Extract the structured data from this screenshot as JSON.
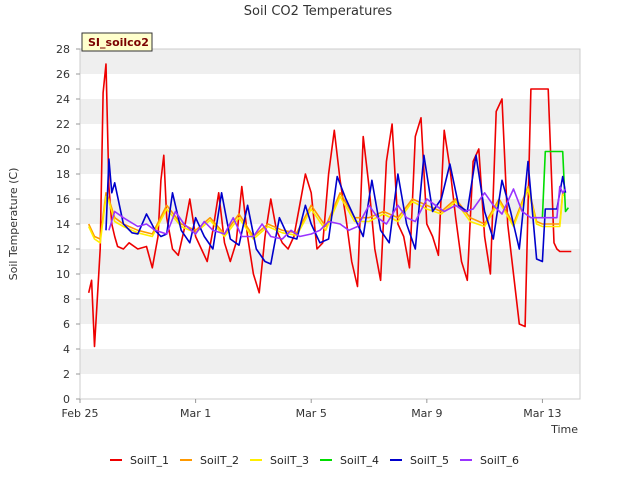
{
  "chart_data": {
    "type": "line",
    "title": "Soil CO2 Temperatures",
    "xlabel": "Time",
    "ylabel": "Soil Temperature (C)",
    "badge": "SI_soilco2",
    "ylim": [
      0,
      28
    ],
    "xlim": [
      0,
      17.3
    ],
    "y_ticks": [
      0,
      2,
      4,
      6,
      8,
      10,
      12,
      14,
      16,
      18,
      20,
      22,
      24,
      26,
      28
    ],
    "x_ticks": [
      {
        "label": "Feb 25",
        "value": 0
      },
      {
        "label": "Mar 1",
        "value": 4
      },
      {
        "label": "Mar 5",
        "value": 8
      },
      {
        "label": "Mar 9",
        "value": 12
      },
      {
        "label": "Mar 13",
        "value": 16
      }
    ],
    "grid": "horizontal bands",
    "legend_position": "bottom",
    "colors": {
      "SoilT_1": "#ee0000",
      "SoilT_2": "#ff9900",
      "SoilT_3": "#ffee00",
      "SoilT_4": "#00dd00",
      "SoilT_5": "#0000cc",
      "SoilT_6": "#9933ff",
      "band": "#efefef",
      "badge_bg": "#ffffcc"
    },
    "series": [
      {
        "name": "SoilT_1",
        "x": [
          0.3,
          0.4,
          0.5,
          0.6,
          0.7,
          0.8,
          0.9,
          1.0,
          1.1,
          1.2,
          1.3,
          1.5,
          1.7,
          2.0,
          2.3,
          2.5,
          2.7,
          2.8,
          2.9,
          3.0,
          3.2,
          3.4,
          3.6,
          3.8,
          4.0,
          4.2,
          4.4,
          4.6,
          4.8,
          5.0,
          5.2,
          5.4,
          5.6,
          5.8,
          6.0,
          6.2,
          6.4,
          6.6,
          6.8,
          7.0,
          7.2,
          7.4,
          7.6,
          7.8,
          8.0,
          8.2,
          8.4,
          8.6,
          8.8,
          9.0,
          9.2,
          9.4,
          9.6,
          9.8,
          10.0,
          10.2,
          10.4,
          10.6,
          10.8,
          11.0,
          11.2,
          11.4,
          11.6,
          11.8,
          12.0,
          12.2,
          12.4,
          12.6,
          12.8,
          13.0,
          13.2,
          13.4,
          13.6,
          13.8,
          14.0,
          14.2,
          14.4,
          14.6,
          14.8,
          15.0,
          15.2,
          15.4,
          15.6,
          15.8,
          16.0,
          16.2,
          16.4,
          16.5,
          16.6,
          16.7,
          16.8,
          16.9,
          17.0
        ],
        "y": [
          8.5,
          9.5,
          4.2,
          8.0,
          12.0,
          24.5,
          26.8,
          17.0,
          14.0,
          13.0,
          12.2,
          12.0,
          12.5,
          12.0,
          12.2,
          10.5,
          13.0,
          17.5,
          19.5,
          14.5,
          12.0,
          11.5,
          13.5,
          16.0,
          13.0,
          12.0,
          11.0,
          13.5,
          16.5,
          12.5,
          11.0,
          12.5,
          17.0,
          13.0,
          10.0,
          8.5,
          13.0,
          16.0,
          13.5,
          12.5,
          12.0,
          13.0,
          15.5,
          18.0,
          16.5,
          12.0,
          12.5,
          18.0,
          21.5,
          17.5,
          14.5,
          11.0,
          9.0,
          21.0,
          17.0,
          12.0,
          9.5,
          19.0,
          22.0,
          14.0,
          13.0,
          10.5,
          21.0,
          22.5,
          14.0,
          13.0,
          11.5,
          21.5,
          18.5,
          14.5,
          11.0,
          9.5,
          19.0,
          20.0,
          13.0,
          10.0,
          23.0,
          24.0,
          14.0,
          10.0,
          6.0,
          5.8,
          24.8,
          24.8,
          24.8,
          24.8,
          12.5,
          12.0,
          11.8,
          11.8,
          11.8,
          11.8,
          11.8
        ]
      },
      {
        "name": "SoilT_2",
        "x": [
          0.3,
          0.5,
          0.7,
          0.9,
          1.0,
          1.2,
          1.5,
          2.0,
          2.5,
          3.0,
          3.5,
          4.0,
          4.5,
          5.0,
          5.5,
          6.0,
          6.5,
          7.0,
          7.5,
          8.0,
          8.5,
          9.0,
          9.5,
          10.0,
          10.5,
          11.0,
          11.5,
          12.0,
          12.5,
          13.0,
          13.5,
          14.0,
          14.5,
          15.0,
          15.5,
          15.8,
          16.0,
          16.3,
          16.5,
          16.6,
          16.7,
          16.8
        ],
        "y": [
          14.0,
          13.0,
          12.8,
          16.5,
          16.0,
          14.5,
          14.0,
          13.5,
          13.2,
          15.5,
          14.0,
          13.5,
          14.5,
          13.2,
          14.8,
          13.0,
          14.0,
          13.5,
          13.3,
          15.5,
          13.8,
          16.5,
          14.5,
          14.5,
          15.0,
          14.5,
          16.0,
          15.5,
          15.0,
          16.0,
          14.5,
          14.0,
          16.0,
          14.0,
          17.0,
          14.2,
          14.0,
          14.0,
          14.0,
          14.0,
          16.5,
          16.5
        ]
      },
      {
        "name": "SoilT_3",
        "x": [
          0.3,
          0.5,
          0.7,
          0.9,
          1.0,
          1.2,
          1.5,
          2.0,
          2.5,
          3.0,
          3.5,
          4.0,
          4.5,
          5.0,
          5.5,
          6.0,
          6.5,
          7.0,
          7.5,
          8.0,
          8.5,
          9.0,
          9.5,
          10.0,
          10.5,
          11.0,
          11.5,
          12.0,
          12.5,
          13.0,
          13.5,
          14.0,
          14.5,
          15.0,
          15.5,
          15.8,
          16.0,
          16.3,
          16.5,
          16.6,
          16.7,
          16.8
        ],
        "y": [
          13.8,
          12.8,
          12.5,
          16.2,
          15.8,
          14.2,
          13.8,
          13.3,
          13.0,
          15.2,
          13.8,
          13.3,
          14.3,
          13.0,
          14.5,
          12.8,
          13.8,
          13.3,
          13.1,
          15.2,
          13.5,
          16.2,
          14.2,
          14.2,
          14.8,
          14.2,
          15.8,
          15.2,
          14.8,
          15.8,
          14.2,
          13.8,
          15.8,
          13.8,
          16.8,
          14.0,
          13.8,
          13.8,
          13.8,
          13.8,
          16.3,
          16.3
        ]
      },
      {
        "name": "SoilT_4",
        "x": [
          16.0,
          16.1,
          16.2,
          16.4,
          16.6,
          16.7,
          16.8,
          16.9
        ],
        "y": [
          14.5,
          19.8,
          19.8,
          19.8,
          19.8,
          19.8,
          15.0,
          15.3
        ]
      },
      {
        "name": "SoilT_5",
        "x": [
          0.9,
          1.0,
          1.1,
          1.2,
          1.5,
          1.8,
          2.0,
          2.3,
          2.6,
          2.8,
          3.0,
          3.2,
          3.5,
          3.8,
          4.0,
          4.3,
          4.6,
          4.9,
          5.2,
          5.5,
          5.8,
          6.1,
          6.4,
          6.6,
          6.9,
          7.2,
          7.5,
          7.8,
          8.0,
          8.3,
          8.6,
          8.9,
          9.2,
          9.5,
          9.8,
          10.1,
          10.4,
          10.7,
          11.0,
          11.3,
          11.6,
          11.9,
          12.2,
          12.5,
          12.8,
          13.1,
          13.4,
          13.7,
          14.0,
          14.3,
          14.6,
          14.9,
          15.2,
          15.5,
          15.8,
          16.0,
          16.1,
          16.5,
          16.7,
          16.8
        ],
        "y": [
          13.5,
          19.2,
          16.5,
          17.3,
          14.0,
          13.3,
          13.2,
          14.8,
          13.5,
          13.0,
          13.2,
          16.5,
          13.5,
          12.5,
          14.5,
          13.0,
          12.0,
          16.5,
          12.8,
          12.3,
          15.5,
          12.0,
          11.0,
          10.8,
          14.5,
          13.0,
          12.8,
          15.5,
          14.0,
          12.5,
          12.8,
          17.8,
          16.0,
          14.5,
          13.0,
          17.5,
          13.5,
          12.5,
          18.0,
          14.0,
          12.0,
          19.5,
          15.0,
          16.0,
          18.8,
          15.5,
          15.0,
          19.5,
          15.0,
          12.8,
          17.5,
          15.0,
          12.0,
          19.0,
          11.2,
          11.0,
          15.2,
          15.2,
          17.8,
          16.5
        ]
      },
      {
        "name": "SoilT_6",
        "x": [
          1.0,
          1.2,
          1.5,
          2.0,
          2.3,
          2.6,
          3.0,
          3.3,
          3.6,
          4.0,
          4.3,
          4.6,
          5.0,
          5.3,
          5.6,
          6.0,
          6.3,
          6.6,
          7.0,
          7.3,
          7.6,
          8.0,
          8.3,
          8.6,
          9.0,
          9.3,
          9.6,
          10.0,
          10.3,
          10.6,
          11.0,
          11.3,
          11.6,
          12.0,
          12.3,
          12.6,
          13.0,
          13.3,
          13.6,
          14.0,
          14.3,
          14.6,
          15.0,
          15.3,
          15.6,
          16.0,
          16.2,
          16.5,
          16.6,
          16.7,
          16.8
        ],
        "y": [
          13.5,
          15.0,
          14.5,
          13.8,
          14.0,
          13.5,
          13.2,
          15.0,
          14.0,
          13.2,
          14.2,
          13.5,
          13.2,
          14.5,
          13.0,
          13.0,
          14.0,
          13.0,
          12.8,
          13.5,
          13.0,
          13.2,
          13.5,
          14.2,
          14.0,
          13.5,
          13.8,
          15.5,
          14.5,
          14.0,
          15.5,
          14.5,
          14.2,
          16.0,
          15.5,
          15.0,
          15.5,
          15.0,
          15.2,
          16.5,
          15.5,
          14.8,
          16.8,
          15.0,
          14.5,
          14.5,
          14.5,
          14.5,
          17.0,
          16.5,
          16.8
        ]
      }
    ]
  }
}
